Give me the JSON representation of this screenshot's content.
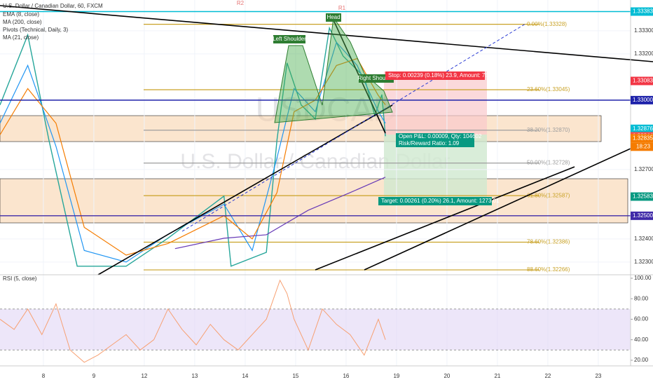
{
  "chart_data": {
    "type": "line",
    "title": "U.S. Dollar / Canadian Dollar, 60, FXCM",
    "watermark": "USDCAD",
    "watermark_subtitle": "U.S. Dollar / Canadian Dollar",
    "indicators": [
      "EMA (8, close)",
      "MA (200, close)",
      "Pivots (Technical, Daily, 3)",
      "MA (21, close)"
    ],
    "xlim": [
      -0.86,
      11.64
    ],
    "xticks": [
      {
        "value": 0,
        "label": "8"
      },
      {
        "value": 1,
        "label": "9"
      },
      {
        "value": 2,
        "label": "12"
      },
      {
        "value": 3,
        "label": "13"
      },
      {
        "value": 4,
        "label": "14"
      },
      {
        "value": 5,
        "label": "15"
      },
      {
        "value": 6,
        "label": "16"
      },
      {
        "value": 7,
        "label": "19"
      },
      {
        "value": 8,
        "label": "20"
      },
      {
        "value": 9,
        "label": "21"
      },
      {
        "value": 10,
        "label": "22"
      },
      {
        "value": 11,
        "label": "23"
      }
    ],
    "ylim": [
      1.32245,
      1.33433
    ],
    "yticks": [
      {
        "value": 1.333,
        "label": "1.33300"
      },
      {
        "value": 1.332,
        "label": "1.33200"
      },
      {
        "value": 1.327,
        "label": "1.32700"
      },
      {
        "value": 1.324,
        "label": "1.32400"
      },
      {
        "value": 1.323,
        "label": "1.32300"
      }
    ],
    "series": [
      {
        "name": "Price",
        "color": "#26a69a",
        "x": [
          -0.86,
          -0.31,
          0.11,
          0.67,
          1.64,
          2.47,
          3.58,
          3.72,
          4.42,
          4.63,
          4.83,
          5.11,
          5.39,
          5.67,
          5.94,
          6.36,
          6.57,
          6.71,
          6.78
        ],
        "values": [
          1.32979,
          1.33282,
          1.32827,
          1.32282,
          1.32282,
          1.32403,
          1.32585,
          1.32282,
          1.32342,
          1.32827,
          1.33161,
          1.32979,
          1.32918,
          1.33312,
          1.33191,
          1.331,
          1.32933,
          1.33024,
          1.32844
        ]
      },
      {
        "name": "EMA (8, close)",
        "color": "#2196f3",
        "x": [
          -0.86,
          -0.31,
          0.25,
          0.81,
          1.64,
          2.47,
          3.58,
          4.14,
          4.63,
          4.97,
          5.39,
          5.81,
          6.22,
          6.64,
          6.78
        ],
        "values": [
          1.329,
          1.3315,
          1.328,
          1.3235,
          1.323,
          1.3242,
          1.3255,
          1.3235,
          1.3275,
          1.3305,
          1.3295,
          1.3325,
          1.3315,
          1.3295,
          1.329
        ]
      },
      {
        "name": "MA (21, close)",
        "color": "#f57c00",
        "x": [
          -0.86,
          -0.31,
          0.25,
          0.81,
          1.64,
          2.47,
          3.58,
          4.14,
          4.63,
          4.97,
          5.39,
          5.81,
          6.22,
          6.64,
          6.78
        ],
        "values": [
          1.3285,
          1.3305,
          1.329,
          1.3245,
          1.3233,
          1.3238,
          1.325,
          1.324,
          1.326,
          1.3295,
          1.33,
          1.3315,
          1.3318,
          1.3302,
          1.3298
        ]
      },
      {
        "name": "MA (200, close)",
        "color": "#673ab7",
        "x": [
          2.61,
          3.58,
          4.42,
          5.25,
          6.08,
          6.78
        ],
        "values": [
          1.32358,
          1.32403,
          1.32418,
          1.32524,
          1.326,
          1.32667
        ]
      }
    ],
    "fib_levels": [
      {
        "value": 1.33328,
        "label": "0.00%(1.33328)",
        "color": "#c9a227"
      },
      {
        "value": 1.33045,
        "label": "23.60%(1.33045)",
        "color": "#c9a227"
      },
      {
        "value": 1.3287,
        "label": "38.20%(1.32870)",
        "color": "#9e9e9e"
      },
      {
        "value": 1.32728,
        "label": "50.00%(1.32728)",
        "color": "#9e9e9e"
      },
      {
        "value": 1.32587,
        "label": "61.80%(1.32587)",
        "color": "#c9a227"
      },
      {
        "value": 1.32386,
        "label": "78.60%(1.32386)",
        "color": "#c9a227"
      },
      {
        "value": 1.32266,
        "label": "88.60%(1.32266)",
        "color": "#c9a227"
      }
    ],
    "price_labels": [
      {
        "value": 1.33383,
        "label": "1.33383",
        "color": "#00bcd4",
        "line": true
      },
      {
        "value": 1.33083,
        "label": "1.33083",
        "color": "#f23645",
        "line": false
      },
      {
        "value": 1.33,
        "label": "1.33000",
        "color": "#1e22aa",
        "line": true
      },
      {
        "value": 1.32876,
        "label": "1.32876",
        "color": "#00bcd4",
        "line": false
      },
      {
        "value": 1.32844,
        "label": "1.32844",
        "color": "#ef5350",
        "line": false
      },
      {
        "value": 1.32835,
        "label": "1.32835",
        "color": "#f57c00",
        "line": false
      },
      {
        "value": 1.32583,
        "label": "1.32583",
        "color": "#089981",
        "line": false
      },
      {
        "value": 1.325,
        "label": "1.32500",
        "color": "#3f2aa8",
        "line": true
      }
    ],
    "countdown": "18:23",
    "annotations": {
      "head": "Head",
      "left_shoulder": "Left Shoulder",
      "right_shoulder": "Right Shoulder",
      "pivot_r2": "R2",
      "pivot_r1": "R1"
    },
    "position": {
      "stop": "Stop: 0.00239 (0.18%) 23.9, Amount: 750",
      "open_pnl": "Open P&L: 0.00009, Qty: 104602",
      "risk_reward": "Risk/Reward Ratio: 1.09",
      "target": "Target: 0.00261 (0.20%) 26.1, Amount: 1273.01"
    },
    "rsi": {
      "title": "RSI (5, close)",
      "color": "#f7a072",
      "ylim": [
        14.5,
        103.4
      ],
      "yticks": [
        {
          "value": 100,
          "label": "100.00"
        },
        {
          "value": 80,
          "label": "80.00"
        },
        {
          "value": 60,
          "label": "60.00"
        },
        {
          "value": 40,
          "label": "40.00"
        },
        {
          "value": 20,
          "label": "20.00"
        }
      ],
      "band": [
        30,
        70
      ],
      "x": [
        -0.86,
        -0.58,
        -0.31,
        -0.03,
        0.25,
        0.53,
        0.81,
        1.08,
        1.36,
        1.64,
        1.92,
        2.19,
        2.47,
        2.75,
        3.03,
        3.31,
        3.58,
        3.86,
        4.14,
        4.42,
        4.69,
        4.83,
        4.97,
        5.25,
        5.53,
        5.81,
        6.08,
        6.36,
        6.64,
        6.78
      ],
      "values": [
        60,
        50,
        70,
        45,
        75,
        30,
        18,
        25,
        35,
        45,
        30,
        40,
        70,
        50,
        35,
        55,
        40,
        30,
        45,
        60,
        98,
        85,
        60,
        30,
        70,
        55,
        45,
        25,
        60,
        40
      ]
    }
  }
}
